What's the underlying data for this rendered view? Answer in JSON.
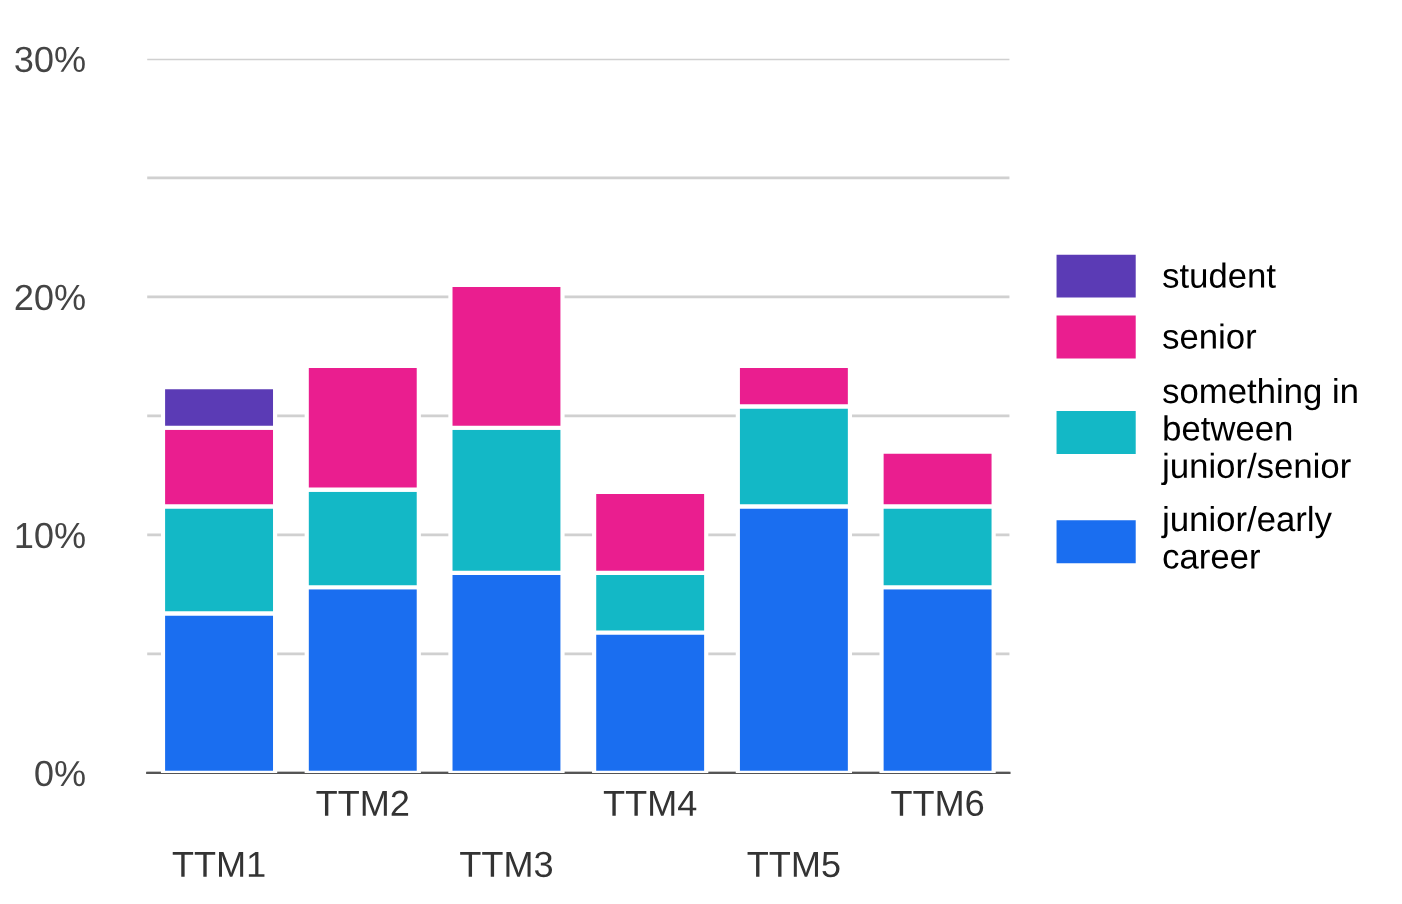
{
  "chart_data": {
    "type": "bar",
    "stacked": true,
    "categories": [
      "TTM1",
      "TTM2",
      "TTM3",
      "TTM4",
      "TTM5",
      "TTM6"
    ],
    "series": [
      {
        "name": "junior/early career",
        "color": "#1a6ef0",
        "values": [
          6.7,
          7.8,
          8.4,
          5.9,
          11.2,
          7.8
        ]
      },
      {
        "name": "something in between junior/senior",
        "color": "#13b8c6",
        "values": [
          4.5,
          4.1,
          6.1,
          2.5,
          4.2,
          3.4
        ]
      },
      {
        "name": "senior",
        "color": "#ea1e8f",
        "values": [
          3.3,
          5.2,
          6.0,
          3.4,
          1.7,
          2.3
        ]
      },
      {
        "name": "student",
        "color": "#5b3bb5",
        "values": [
          1.7,
          null,
          null,
          null,
          null,
          null
        ]
      }
    ],
    "ylim": [
      0,
      30
    ],
    "yticks": [
      {
        "value": 0,
        "label": "0%"
      },
      {
        "value": 5,
        "label": null
      },
      {
        "value": 10,
        "label": "10%"
      },
      {
        "value": 15,
        "label": null
      },
      {
        "value": 20,
        "label": "20%"
      },
      {
        "value": 25,
        "label": null
      },
      {
        "value": 30,
        "label": "30%"
      }
    ],
    "grid": "y",
    "legend": "right"
  }
}
